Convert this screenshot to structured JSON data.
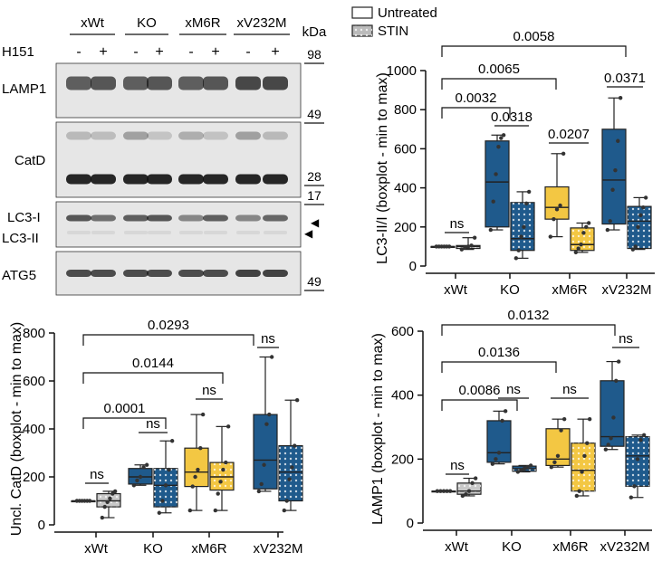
{
  "colors": {
    "xWt": "#c8c8c8",
    "KO": "#1f5a8c",
    "xM6R": "#f3c743",
    "xV232M": "#1f5a8c",
    "edge": "#222222"
  },
  "legend": {
    "untreated": "Untreated",
    "stin": "STIN"
  },
  "blot": {
    "groups": [
      "xWt",
      "KO",
      "xM6R",
      "xV232M"
    ],
    "treatment_label": "H151",
    "lane_signs": [
      "-",
      "+",
      "-",
      "+",
      "-",
      "+",
      "-",
      "+"
    ],
    "kda_label": "kDa",
    "panels": [
      {
        "label": "LAMP1",
        "markers": [
          "98",
          "49"
        ]
      },
      {
        "label": "CatD",
        "markers": [
          "28"
        ]
      },
      {
        "label": "LC3-I",
        "label2": "LC3-II",
        "markers": [
          "17"
        ],
        "arrows": [
          "◀",
          "◀"
        ]
      },
      {
        "label": "ATG5",
        "markers": [
          "49"
        ]
      }
    ]
  },
  "chart_data": [
    {
      "id": "lc3",
      "type": "box",
      "ylabel": "LC3-II/I (boxplot - min to max)",
      "ylim": [
        0,
        1000
      ],
      "yticks": [
        "0",
        "200",
        "400",
        "600",
        "800",
        "1000"
      ],
      "categories": [
        "xWt",
        "KO",
        "xM6R",
        "xV232M"
      ],
      "series": [
        {
          "name": "Untreated",
          "groups": [
            {
              "category": "xWt",
              "min": 100,
              "q1": 100,
              "median": 100,
              "q3": 100,
              "max": 100,
              "points": [
                100,
                100,
                100,
                100,
                100,
                100
              ]
            },
            {
              "category": "KO",
              "min": 185,
              "q1": 200,
              "median": 430,
              "q3": 640,
              "max": 670,
              "points": [
                185,
                330,
                470,
                610,
                655,
                670
              ]
            },
            {
              "category": "xM6R",
              "min": 150,
              "q1": 240,
              "median": 300,
              "q3": 405,
              "max": 575,
              "points": [
                150,
                240,
                290,
                310,
                575
              ]
            },
            {
              "category": "xV232M",
              "min": 185,
              "q1": 215,
              "median": 440,
              "q3": 700,
              "max": 860,
              "points": [
                185,
                230,
                390,
                490,
                640,
                860
              ]
            }
          ]
        },
        {
          "name": "STIN",
          "groups": [
            {
              "category": "xWt",
              "min": 85,
              "q1": 90,
              "median": 100,
              "q3": 105,
              "max": 145,
              "points": [
                85,
                95,
                100,
                105,
                145
              ]
            },
            {
              "category": "KO",
              "min": 40,
              "q1": 80,
              "median": 140,
              "q3": 325,
              "max": 380,
              "points": [
                40,
                80,
                150,
                200,
                320,
                380
              ]
            },
            {
              "category": "xM6R",
              "min": 70,
              "q1": 80,
              "median": 110,
              "q3": 195,
              "max": 220,
              "points": [
                70,
                90,
                110,
                170,
                200,
                220
              ]
            },
            {
              "category": "xV232M",
              "min": 85,
              "q1": 90,
              "median": 230,
              "q3": 305,
              "max": 350,
              "points": [
                85,
                100,
                200,
                260,
                300,
                350
              ]
            }
          ]
        }
      ],
      "annotations": [
        {
          "type": "bracket",
          "from": "xWt",
          "to": "KO",
          "text": "0.0032"
        },
        {
          "type": "bracket",
          "from": "xWt",
          "to": "xM6R",
          "text": "0.0065"
        },
        {
          "type": "bracket",
          "from": "xWt",
          "to": "xV232M",
          "text": "0.0058"
        },
        {
          "type": "pair",
          "category": "xWt",
          "text": "ns"
        },
        {
          "type": "pair",
          "category": "KO",
          "text": "0.0318"
        },
        {
          "type": "pair",
          "category": "xM6R",
          "text": "0.0207"
        },
        {
          "type": "pair",
          "category": "xV232M",
          "text": "0.0371"
        }
      ]
    },
    {
      "id": "catd",
      "type": "box",
      "ylabel": "Uncl. CatD (boxplot - min to max)",
      "ylim": [
        0,
        800
      ],
      "yticks": [
        "0",
        "200",
        "400",
        "600",
        "800"
      ],
      "categories": [
        "xWt",
        "KO",
        "xM6R",
        "xV232M"
      ],
      "series": [
        {
          "name": "Untreated",
          "groups": [
            {
              "category": "xWt",
              "min": 100,
              "q1": 100,
              "median": 100,
              "q3": 100,
              "max": 100,
              "points": [
                100,
                100,
                100,
                100,
                100,
                100
              ]
            },
            {
              "category": "KO",
              "min": 165,
              "q1": 170,
              "median": 200,
              "q3": 235,
              "max": 250,
              "points": [
                165,
                185,
                200,
                240,
                250
              ]
            },
            {
              "category": "xM6R",
              "min": 60,
              "q1": 160,
              "median": 220,
              "q3": 320,
              "max": 460,
              "points": [
                60,
                160,
                200,
                230,
                320,
                460
              ]
            },
            {
              "category": "xV232M",
              "min": 140,
              "q1": 150,
              "median": 270,
              "q3": 460,
              "max": 700,
              "points": [
                140,
                170,
                250,
                420,
                460,
                700
              ]
            }
          ]
        },
        {
          "name": "STIN",
          "groups": [
            {
              "category": "xWt",
              "min": 30,
              "q1": 75,
              "median": 100,
              "q3": 130,
              "max": 140,
              "points": [
                30,
                75,
                95,
                110,
                130,
                140
              ]
            },
            {
              "category": "KO",
              "min": 50,
              "q1": 75,
              "median": 165,
              "q3": 235,
              "max": 350,
              "points": [
                50,
                100,
                165,
                230,
                350
              ]
            },
            {
              "category": "xM6R",
              "min": 60,
              "q1": 145,
              "median": 200,
              "q3": 260,
              "max": 410,
              "points": [
                60,
                130,
                180,
                230,
                260,
                410
              ]
            },
            {
              "category": "xV232M",
              "min": 60,
              "q1": 100,
              "median": 220,
              "q3": 330,
              "max": 520,
              "points": [
                60,
                100,
                190,
                240,
                330,
                520
              ]
            }
          ]
        }
      ],
      "annotations": [
        {
          "type": "bracket",
          "from": "xWt",
          "to": "KO",
          "text": "0.0001"
        },
        {
          "type": "bracket",
          "from": "xWt",
          "to": "xM6R",
          "text": "0.0144"
        },
        {
          "type": "bracket",
          "from": "xWt",
          "to": "xV232M",
          "text": "0.0293"
        },
        {
          "type": "pair",
          "category": "xWt",
          "text": "ns"
        },
        {
          "type": "pair",
          "category": "KO",
          "text": "ns"
        },
        {
          "type": "pair",
          "category": "xM6R",
          "text": "ns"
        },
        {
          "type": "pair",
          "category": "xV232M",
          "text": "ns"
        }
      ]
    },
    {
      "id": "lamp1",
      "type": "box",
      "ylabel": "LAMP1 (boxplot - min to max)",
      "ylim": [
        0,
        600
      ],
      "yticks": [
        "0",
        "200",
        "400",
        "600"
      ],
      "categories": [
        "xWt",
        "KO",
        "xM6R",
        "xV232M"
      ],
      "series": [
        {
          "name": "Untreated",
          "groups": [
            {
              "category": "xWt",
              "min": 100,
              "q1": 100,
              "median": 100,
              "q3": 100,
              "max": 100,
              "points": [
                100,
                100,
                100,
                100,
                100
              ]
            },
            {
              "category": "KO",
              "min": 185,
              "q1": 190,
              "median": 220,
              "q3": 320,
              "max": 350,
              "points": [
                185,
                200,
                220,
                320,
                350
              ]
            },
            {
              "category": "xM6R",
              "min": 175,
              "q1": 180,
              "median": 200,
              "q3": 295,
              "max": 325,
              "points": [
                175,
                190,
                210,
                290,
                325
              ]
            },
            {
              "category": "xV232M",
              "min": 230,
              "q1": 240,
              "median": 270,
              "q3": 445,
              "max": 505,
              "points": [
                230,
                245,
                265,
                330,
                445,
                505
              ]
            }
          ]
        },
        {
          "name": "STIN",
          "groups": [
            {
              "category": "xWt",
              "min": 85,
              "q1": 90,
              "median": 100,
              "q3": 125,
              "max": 140,
              "points": [
                85,
                90,
                100,
                125,
                140
              ]
            },
            {
              "category": "KO",
              "min": 160,
              "q1": 162,
              "median": 170,
              "q3": 178,
              "max": 180,
              "points": [
                160,
                165,
                170,
                175,
                180
              ]
            },
            {
              "category": "xM6R",
              "min": 85,
              "q1": 100,
              "median": 165,
              "q3": 250,
              "max": 325,
              "points": [
                85,
                100,
                160,
                210,
                250,
                325
              ]
            },
            {
              "category": "xV232M",
              "min": 80,
              "q1": 115,
              "median": 210,
              "q3": 270,
              "max": 275,
              "points": [
                80,
                115,
                200,
                260,
                275
              ]
            }
          ]
        }
      ],
      "annotations": [
        {
          "type": "bracket",
          "from": "xWt",
          "to": "KO",
          "text": "0.0086"
        },
        {
          "type": "bracket",
          "from": "xWt",
          "to": "xM6R",
          "text": "0.0136"
        },
        {
          "type": "bracket",
          "from": "xWt",
          "to": "xV232M",
          "text": "0.0132"
        },
        {
          "type": "pair",
          "category": "xWt",
          "text": "ns"
        },
        {
          "type": "pair",
          "category": "KO",
          "text": "ns"
        },
        {
          "type": "pair",
          "category": "xM6R",
          "text": "ns"
        },
        {
          "type": "pair",
          "category": "xV232M",
          "text": "ns"
        }
      ]
    }
  ]
}
